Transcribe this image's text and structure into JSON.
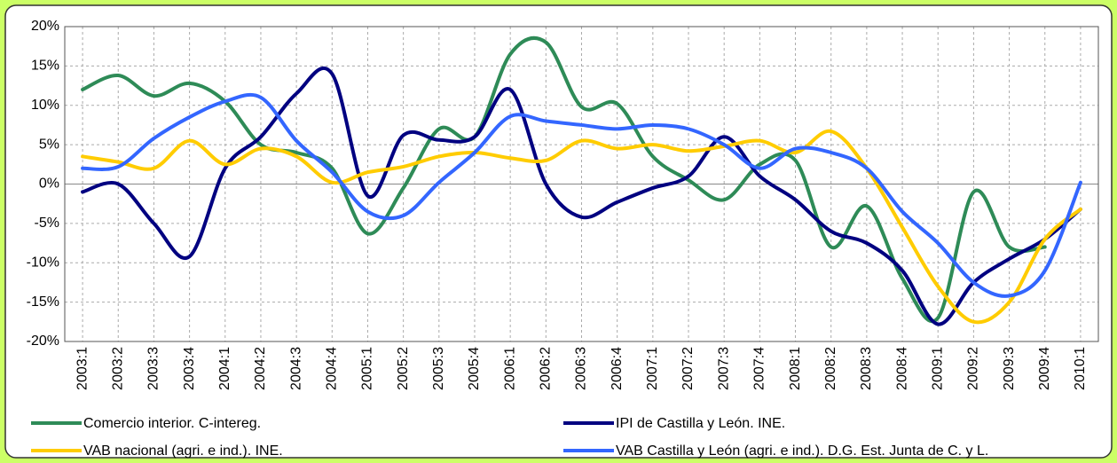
{
  "chart_data": {
    "type": "line",
    "categories": [
      "2003:1",
      "2003:2",
      "2003:3",
      "2003:4",
      "2004:1",
      "2004:2",
      "2004:3",
      "2004:4",
      "2005:1",
      "2005:2",
      "2005:3",
      "2005:4",
      "2006:1",
      "2006:2",
      "2006:3",
      "2006:4",
      "2007:1",
      "2007:2",
      "2007:3",
      "2007:4",
      "2008:1",
      "2008:2",
      "2008:3",
      "2008:4",
      "2009:1",
      "2009:2",
      "2009:3",
      "2009:4",
      "2010:1"
    ],
    "series": [
      {
        "name": "Comercio interior. C-intereg.",
        "color": "#2e8b57",
        "values": [
          12,
          13.8,
          11.2,
          12.8,
          10.5,
          5,
          4,
          2,
          -6.3,
          -0.5,
          7,
          6,
          16.5,
          18,
          9.8,
          10.2,
          3.5,
          0.5,
          -2,
          2.5,
          3,
          -8,
          -2.8,
          -12,
          -17,
          -1,
          -8,
          -8,
          null
        ]
      },
      {
        "name": "IPI de Castilla y León. INE.",
        "color": "#000080",
        "values": [
          -1,
          0,
          -5,
          -9.2,
          2,
          6,
          11.5,
          14,
          -1.5,
          6.2,
          5.6,
          6,
          12,
          0,
          -4.2,
          -2.3,
          -0.5,
          1,
          6,
          1,
          -2,
          -6,
          -7.5,
          -11,
          -17.8,
          -12.5,
          -9.5,
          -7,
          -3.2
        ]
      },
      {
        "name": "VAB nacional (agri. e ind.). INE.",
        "color": "#ffcc00",
        "values": [
          3.5,
          2.8,
          2,
          5.5,
          2.5,
          4.5,
          3.5,
          0.2,
          1.5,
          2.2,
          3.5,
          4,
          3.3,
          3,
          5.5,
          4.5,
          5,
          4.2,
          4.8,
          5.5,
          4,
          6.7,
          2,
          -5.5,
          -13,
          -17.5,
          -15,
          -7,
          -3.2
        ]
      },
      {
        "name": "VAB Castilla y León (agri. e ind.). D.G. Est. Junta de C. y L.",
        "color": "#3366ff",
        "values": [
          2,
          2.2,
          5.8,
          8.5,
          10.5,
          11,
          5.5,
          1.5,
          -3.5,
          -4,
          0.2,
          4,
          8.6,
          8,
          7.5,
          7,
          7.5,
          7,
          5,
          2,
          4.5,
          4,
          2,
          -3.5,
          -7.5,
          -12.5,
          -14.2,
          -11,
          0.2
        ]
      }
    ],
    "ylim": [
      -20,
      20
    ],
    "yticks": [
      {
        "value": -20,
        "label": "-20%"
      },
      {
        "value": -15,
        "label": "-15%"
      },
      {
        "value": -10,
        "label": "-10%"
      },
      {
        "value": -5,
        "label": "-5%"
      },
      {
        "value": 0,
        "label": "0%"
      },
      {
        "value": 5,
        "label": "5%"
      },
      {
        "value": 10,
        "label": "10%"
      },
      {
        "value": 15,
        "label": "15%"
      },
      {
        "value": 20,
        "label": "20%"
      }
    ],
    "grid": true
  }
}
